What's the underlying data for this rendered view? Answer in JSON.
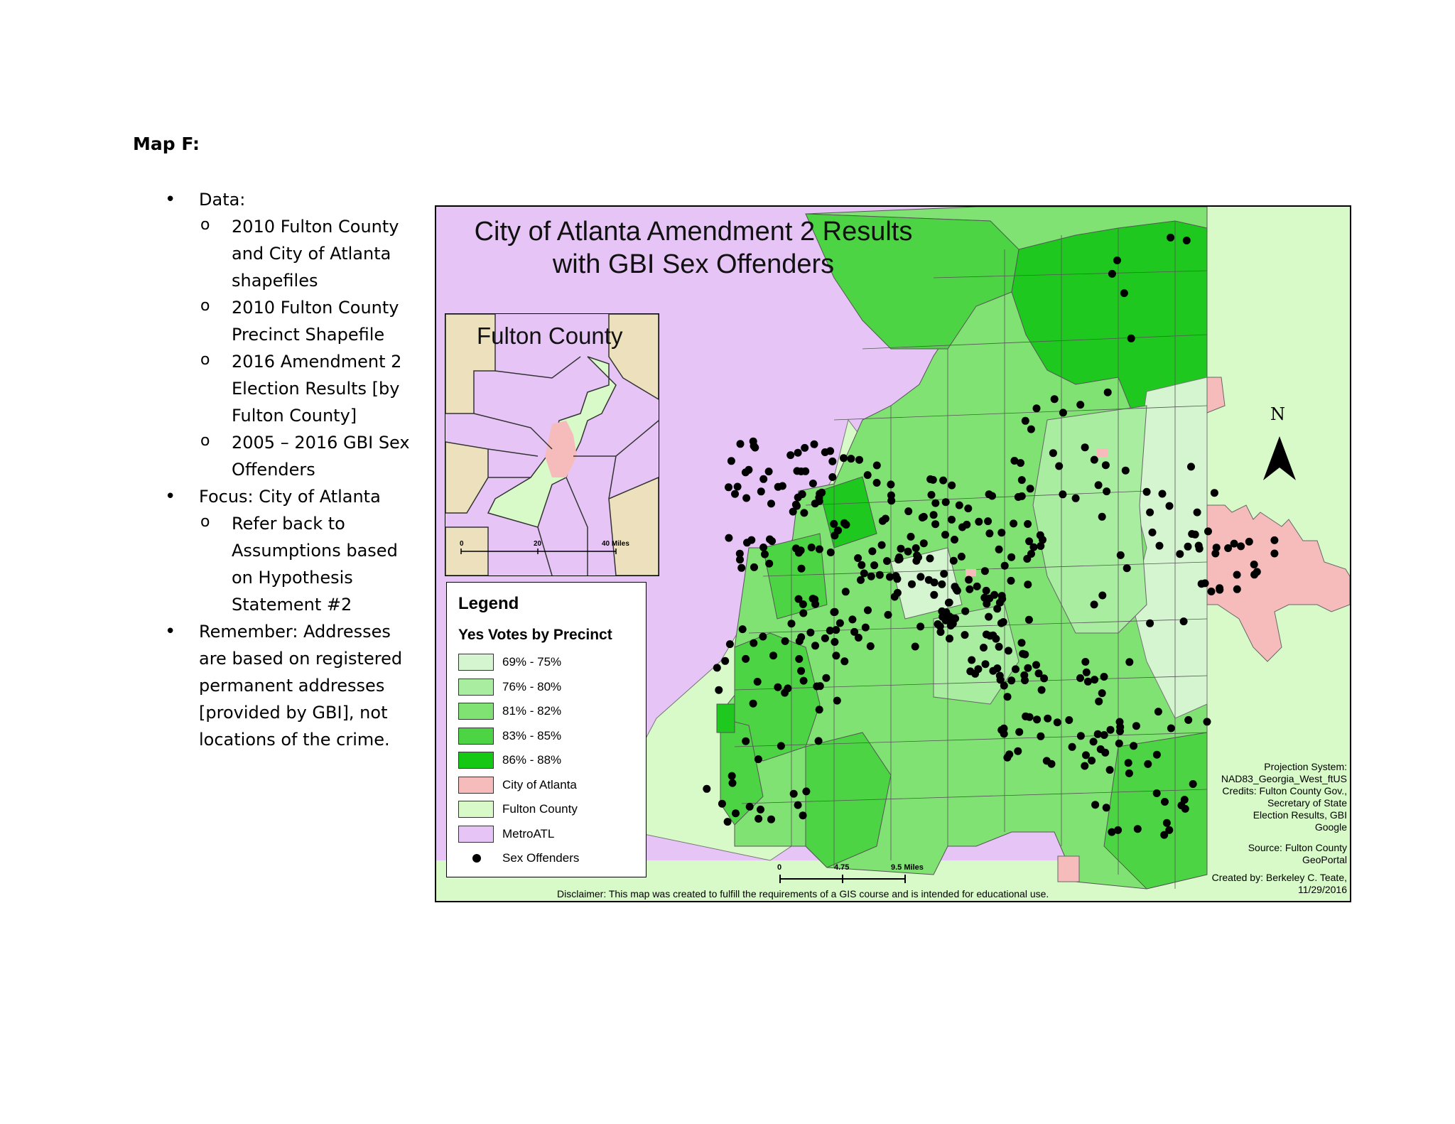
{
  "page": {
    "heading": "Map F:",
    "notes": [
      {
        "level": 1,
        "text": "Data:"
      },
      {
        "level": 2,
        "text": "2010 Fulton County and City of Atlanta shapefiles"
      },
      {
        "level": 2,
        "text": "2010 Fulton County Precinct Shapefile"
      },
      {
        "level": 2,
        "text": "2016 Amendment 2 Election Results [by Fulton County]"
      },
      {
        "level": 2,
        "text": "2005 – 2016 GBI Sex Offenders"
      },
      {
        "level": 1,
        "text": "Focus: City of Atlanta"
      },
      {
        "level": 2,
        "text": "Refer back to Assumptions based on Hypothesis Statement #2"
      },
      {
        "level": 1,
        "text": "Remember: Addresses are based on registered permanent addresses [provided by GBI], not locations of the crime."
      }
    ]
  },
  "map": {
    "title_line1": "City of Atlanta Amendment 2 Results",
    "title_line2": "with GBI Sex Offenders",
    "inset": {
      "title": "Fulton County",
      "scale_0": "0",
      "scale_20": "20",
      "scale_40": "40 Miles"
    },
    "legend": {
      "title": "Legend",
      "subtitle": "Yes Votes by Precinct",
      "items": [
        {
          "label": "69% - 75%",
          "color": "#d4f5cf",
          "kind": "box"
        },
        {
          "label": "76% - 80%",
          "color": "#a8eda0",
          "kind": "box"
        },
        {
          "label": "81% - 82%",
          "color": "#7fe273",
          "kind": "box"
        },
        {
          "label": "83% - 85%",
          "color": "#4dd444",
          "kind": "box"
        },
        {
          "label": "86% - 88%",
          "color": "#14c814",
          "kind": "box"
        },
        {
          "label": "City of Atlanta",
          "color": "#f6bcbc",
          "kind": "box"
        },
        {
          "label": "Fulton County",
          "color": "#d8fac8",
          "kind": "box"
        },
        {
          "label": "MetroATL",
          "color": "#e6c4f6",
          "kind": "box"
        },
        {
          "label": "Sex Offenders",
          "color": "#000000",
          "kind": "dot"
        }
      ]
    },
    "north": "N",
    "scale": {
      "s0": "0",
      "s1": "4.75",
      "s2": "9.5 Miles"
    },
    "credits": [
      "Projection System:",
      "NAD83_Georgia_West_ftUS",
      "Credits: Fulton County Gov.,",
      "Secretary of State",
      "Election Results, GBI",
      "Google"
    ],
    "source": [
      "Source: Fulton County",
      "GeoPortal"
    ],
    "author": [
      "Created by: Berkeley C. Teate,",
      "11/29/2016"
    ],
    "disclaimer": "Disclaimer: This map was created to fulfill the requirements of a GIS course and is intended for educational use.",
    "colors": {
      "metro": "#e6c4f6",
      "fulton": "#d8fac8",
      "atlanta": "#f6bcbc",
      "inset_other": "#ede1bd"
    }
  }
}
